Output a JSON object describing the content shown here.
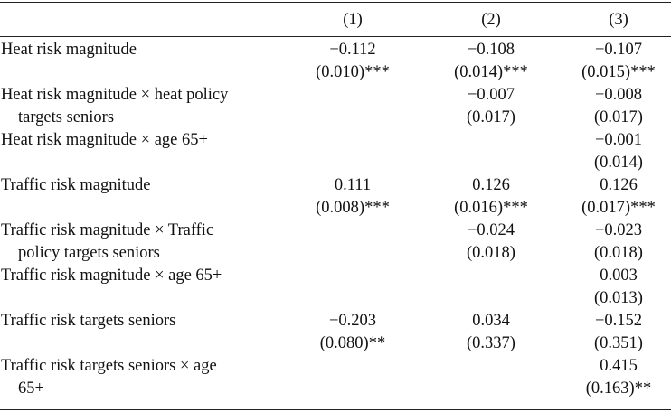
{
  "columns": [
    "(1)",
    "(2)",
    "(3)"
  ],
  "rows": [
    {
      "label_line1": "Heat risk magnitude",
      "label_line2": "",
      "cells": [
        {
          "coef": "−0.112",
          "se": "(0.010)***"
        },
        {
          "coef": "−0.108",
          "se": "(0.014)***"
        },
        {
          "coef": "−0.107",
          "se": "(0.015)***"
        }
      ]
    },
    {
      "label_line1": "Heat risk magnitude × heat policy",
      "label_line2": "targets seniors",
      "cells": [
        {
          "coef": "",
          "se": ""
        },
        {
          "coef": "−0.007",
          "se": "(0.017)"
        },
        {
          "coef": "−0.008",
          "se": "(0.017)"
        }
      ]
    },
    {
      "label_line1": "Heat risk magnitude × age 65+",
      "label_line2": "",
      "cells": [
        {
          "coef": "",
          "se": ""
        },
        {
          "coef": "",
          "se": ""
        },
        {
          "coef": "−0.001",
          "se": "(0.014)"
        }
      ]
    },
    {
      "label_line1": "Traffic risk magnitude",
      "label_line2": "",
      "cells": [
        {
          "coef": "0.111",
          "se": "(0.008)***"
        },
        {
          "coef": "0.126",
          "se": "(0.016)***"
        },
        {
          "coef": "0.126",
          "se": "(0.017)***"
        }
      ]
    },
    {
      "label_line1": "Traffic risk magnitude × Traffic",
      "label_line2": "policy targets seniors",
      "cells": [
        {
          "coef": "",
          "se": ""
        },
        {
          "coef": "−0.024",
          "se": "(0.018)"
        },
        {
          "coef": "−0.023",
          "se": "(0.018)"
        }
      ]
    },
    {
      "label_line1": "Traffic risk magnitude × age 65+",
      "label_line2": "",
      "cells": [
        {
          "coef": "",
          "se": ""
        },
        {
          "coef": "",
          "se": ""
        },
        {
          "coef": "0.003",
          "se": "(0.013)"
        }
      ]
    },
    {
      "label_line1": "Traffic risk targets seniors",
      "label_line2": "",
      "cells": [
        {
          "coef": "−0.203",
          "se": "(0.080)**"
        },
        {
          "coef": "0.034",
          "se": "(0.337)"
        },
        {
          "coef": "−0.152",
          "se": "(0.351)"
        }
      ]
    },
    {
      "label_line1": "Traffic risk targets seniors × age",
      "label_line2": "65+",
      "cells": [
        {
          "coef": "",
          "se": ""
        },
        {
          "coef": "",
          "se": ""
        },
        {
          "coef": "0.415",
          "se": "(0.163)**"
        }
      ]
    }
  ]
}
